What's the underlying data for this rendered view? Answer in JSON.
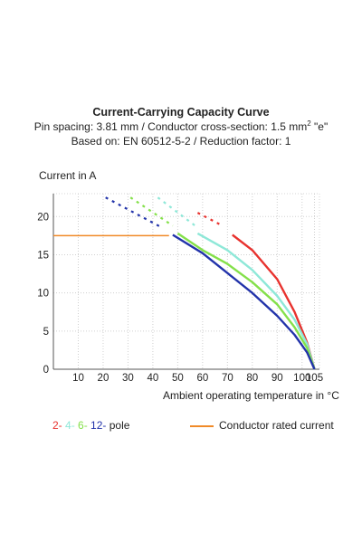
{
  "header": {
    "title": "Current-Carrying Capacity Curve",
    "line2": "Pin spacing: 3.81 mm / Conductor cross-section: 1.5 mm",
    "line2_sup": "2",
    "line2_suffix": " \"e\"",
    "line3": "Based on: EN 60512-5-2 / Reduction factor: 1"
  },
  "legend": {
    "poles": [
      {
        "label": "2-",
        "color": "#e8322e"
      },
      {
        "label": "4-",
        "color": "#8ee8d8"
      },
      {
        "label": "6-",
        "color": "#84e04a"
      },
      {
        "label": "12-",
        "color": "#2233aa"
      }
    ],
    "poles_suffix": " pole",
    "rated_label": "Conductor rated current",
    "rated_color": "#f08a28"
  },
  "chart_data": {
    "type": "line",
    "title": "Current-Carrying Capacity Curve",
    "xlabel": "Ambient operating temperature in °C",
    "ylabel": "Current in A",
    "xlim": [
      0,
      107
    ],
    "ylim": [
      0,
      23
    ],
    "x_ticks": [
      10,
      20,
      30,
      40,
      50,
      60,
      70,
      80,
      90,
      100,
      105
    ],
    "y_ticks": [
      0,
      5,
      10,
      15,
      20
    ],
    "grid": true,
    "rated_current": {
      "name": "Conductor rated current",
      "value": 17.5,
      "x_range": [
        0,
        46.5
      ],
      "color": "#f08a28"
    },
    "series": [
      {
        "name": "2-",
        "color": "#e8322e",
        "dashed": [
          [
            58,
            20.5
          ],
          [
            68,
            18.8
          ]
        ],
        "solid": [
          [
            72,
            17.6
          ],
          [
            80,
            15.6
          ],
          [
            90,
            11.8
          ],
          [
            97,
            7.5
          ],
          [
            102,
            3.5
          ],
          [
            105,
            0
          ]
        ]
      },
      {
        "name": "4-",
        "color": "#8ee8d8",
        "dashed": [
          [
            42,
            22.5
          ],
          [
            57,
            18.8
          ]
        ],
        "solid": [
          [
            58,
            17.8
          ],
          [
            70,
            15.6
          ],
          [
            80,
            13.0
          ],
          [
            90,
            9.6
          ],
          [
            97,
            6.5
          ],
          [
            102,
            3.3
          ],
          [
            105,
            0
          ]
        ]
      },
      {
        "name": "6-",
        "color": "#84e04a",
        "dashed": [
          [
            31,
            22.5
          ],
          [
            48,
            18.8
          ]
        ],
        "solid": [
          [
            50,
            17.8
          ],
          [
            60,
            15.6
          ],
          [
            70,
            13.8
          ],
          [
            80,
            11.4
          ],
          [
            90,
            8.5
          ],
          [
            97,
            5.5
          ],
          [
            102,
            2.8
          ],
          [
            105,
            0
          ]
        ]
      },
      {
        "name": "12-",
        "color": "#2233aa",
        "dashed": [
          [
            21,
            22.5
          ],
          [
            44,
            18.5
          ]
        ],
        "solid": [
          [
            48,
            17.6
          ],
          [
            60,
            15.2
          ],
          [
            70,
            12.6
          ],
          [
            80,
            10.0
          ],
          [
            90,
            7.0
          ],
          [
            97,
            4.5
          ],
          [
            102,
            2.2
          ],
          [
            105,
            0
          ]
        ]
      }
    ]
  }
}
